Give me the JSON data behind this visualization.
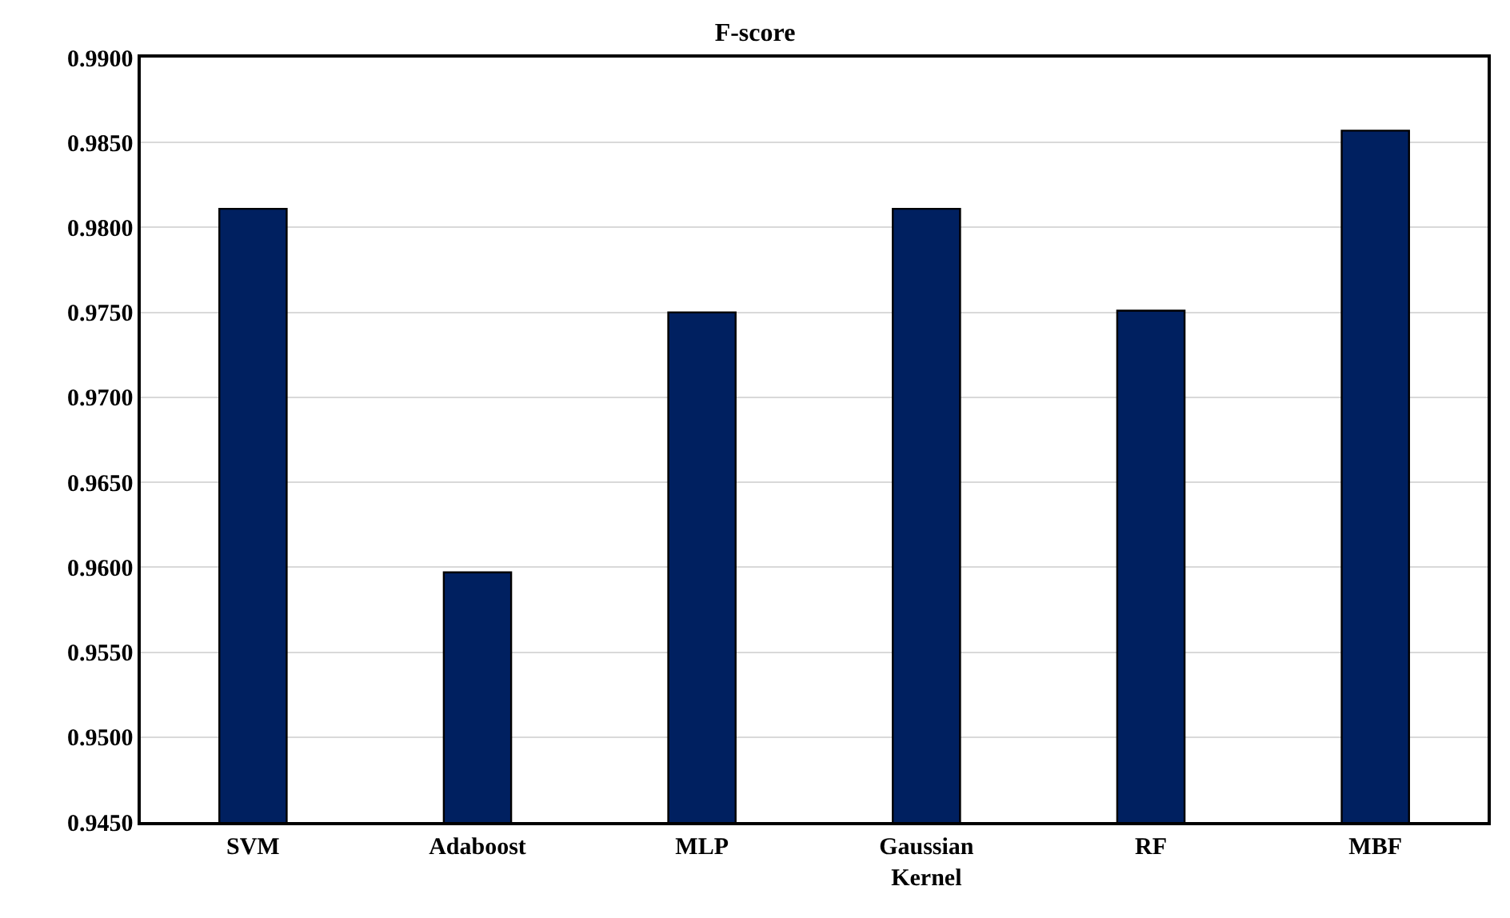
{
  "chart_data": {
    "type": "bar",
    "title": "F-score",
    "categories": [
      "SVM",
      "Adaboost",
      "MLP",
      "Gaussian Kernel",
      "RF",
      "MBF"
    ],
    "values": [
      0.9811,
      0.9597,
      0.975,
      0.9811,
      0.9751,
      0.9857
    ],
    "color": "#002060",
    "ylim": [
      0.945,
      0.99
    ],
    "yticks": [
      {
        "value": 0.945,
        "label": "0.9450"
      },
      {
        "value": 0.95,
        "label": "0.9500"
      },
      {
        "value": 0.955,
        "label": "0.9550"
      },
      {
        "value": 0.96,
        "label": "0.9600"
      },
      {
        "value": 0.965,
        "label": "0.9650"
      },
      {
        "value": 0.97,
        "label": "0.9700"
      },
      {
        "value": 0.975,
        "label": "0.9750"
      },
      {
        "value": 0.98,
        "label": "0.9800"
      },
      {
        "value": 0.985,
        "label": "0.9850"
      },
      {
        "value": 0.99,
        "label": "0.9900"
      }
    ],
    "grid": "y",
    "legend": false
  }
}
